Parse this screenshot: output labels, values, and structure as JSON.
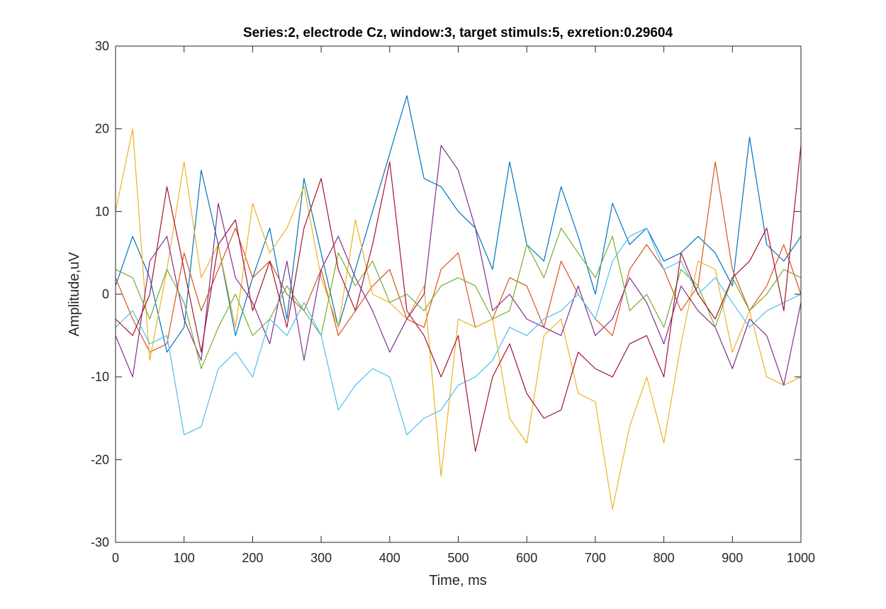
{
  "chart_data": {
    "type": "line",
    "title": "Series:2, electrode Cz, window:3, target stimuls:5, exretion:0.29604",
    "xlabel": "Time, ms",
    "ylabel": "Amplitude,uV",
    "xlim": [
      0,
      1000
    ],
    "ylim": [
      -30,
      30
    ],
    "xticks": [
      0,
      100,
      200,
      300,
      400,
      500,
      600,
      700,
      800,
      900,
      1000
    ],
    "yticks": [
      -30,
      -20,
      -10,
      0,
      10,
      20,
      30
    ],
    "grid": false,
    "legend": "none",
    "x": [
      0,
      25,
      50,
      75,
      100,
      125,
      150,
      175,
      200,
      225,
      250,
      275,
      300,
      325,
      350,
      375,
      400,
      425,
      450,
      475,
      500,
      525,
      550,
      575,
      600,
      625,
      650,
      675,
      700,
      725,
      750,
      775,
      800,
      825,
      850,
      875,
      900,
      925,
      950,
      975,
      1000
    ],
    "series": [
      {
        "color": "#0072BD",
        "values": [
          1,
          7,
          2,
          -7,
          -4,
          15,
          6,
          -5,
          2,
          8,
          -3,
          14,
          5,
          -4,
          3,
          10,
          17,
          24,
          14,
          13,
          10,
          8,
          3,
          16,
          6,
          4,
          13,
          7,
          0,
          11,
          6,
          8,
          4,
          5,
          7,
          5,
          1,
          19,
          6,
          4,
          7
        ]
      },
      {
        "color": "#D95319",
        "values": [
          2,
          -3,
          -7,
          -6,
          5,
          -2,
          3,
          8,
          2,
          4,
          0,
          -2,
          3,
          -5,
          -2,
          1,
          3,
          -3,
          -4,
          3,
          5,
          -4,
          -3,
          2,
          1,
          -4,
          4,
          0,
          -3,
          -5,
          3,
          6,
          3,
          -2,
          1,
          16,
          3,
          -2,
          1,
          6,
          0
        ]
      },
      {
        "color": "#EDB120",
        "values": [
          10,
          20,
          -8,
          3,
          16,
          2,
          6,
          -4,
          11,
          5,
          8,
          13,
          2,
          -4,
          9,
          0,
          -1,
          -3,
          1,
          -22,
          -3,
          -4,
          -3,
          -15,
          -18,
          -5,
          -3,
          -12,
          -13,
          -26,
          -16,
          -10,
          -18,
          -6,
          4,
          3,
          -7,
          -2,
          -10,
          -11,
          -10
        ]
      },
      {
        "color": "#7E2F8E",
        "values": [
          -5,
          -10,
          4,
          7,
          -3,
          -8,
          11,
          2,
          -1,
          -6,
          4,
          -8,
          3,
          7,
          2,
          -2,
          -7,
          -3,
          0,
          18,
          15,
          8,
          -2,
          0,
          -3,
          -4,
          -5,
          1,
          -5,
          -3,
          2,
          -1,
          -6,
          1,
          -2,
          -4,
          -9,
          -3,
          -5,
          -11,
          -1
        ]
      },
      {
        "color": "#77AC30",
        "values": [
          3,
          2,
          -3,
          3,
          -1,
          -9,
          -4,
          0,
          -5,
          -3,
          1,
          -2,
          -5,
          5,
          1,
          4,
          -1,
          0,
          -2,
          1,
          2,
          1,
          -3,
          -2,
          6,
          2,
          8,
          5,
          2,
          7,
          -2,
          0,
          -4,
          3,
          1,
          -4,
          2,
          -2,
          0,
          3,
          2
        ]
      },
      {
        "color": "#4DBEEE",
        "values": [
          -4,
          -2,
          -6,
          -5,
          -17,
          -16,
          -9,
          -7,
          -10,
          -3,
          -5,
          -1,
          -5,
          -14,
          -11,
          -9,
          -10,
          -17,
          -15,
          -14,
          -11,
          -10,
          -8,
          -4,
          -5,
          -3,
          -2,
          0,
          -3,
          4,
          7,
          8,
          3,
          4,
          0,
          2,
          -1,
          -4,
          -2,
          -1,
          0
        ]
      },
      {
        "color": "#A2142F",
        "values": [
          -3,
          -5,
          0,
          13,
          3,
          -7,
          6,
          9,
          -2,
          4,
          -4,
          8,
          14,
          3,
          -2,
          6,
          16,
          -2,
          -5,
          -10,
          -5,
          -19,
          -10,
          -6,
          -12,
          -15,
          -14,
          -7,
          -9,
          -10,
          -6,
          -5,
          -10,
          5,
          0,
          -3,
          2,
          4,
          8,
          -2,
          18
        ]
      }
    ]
  }
}
